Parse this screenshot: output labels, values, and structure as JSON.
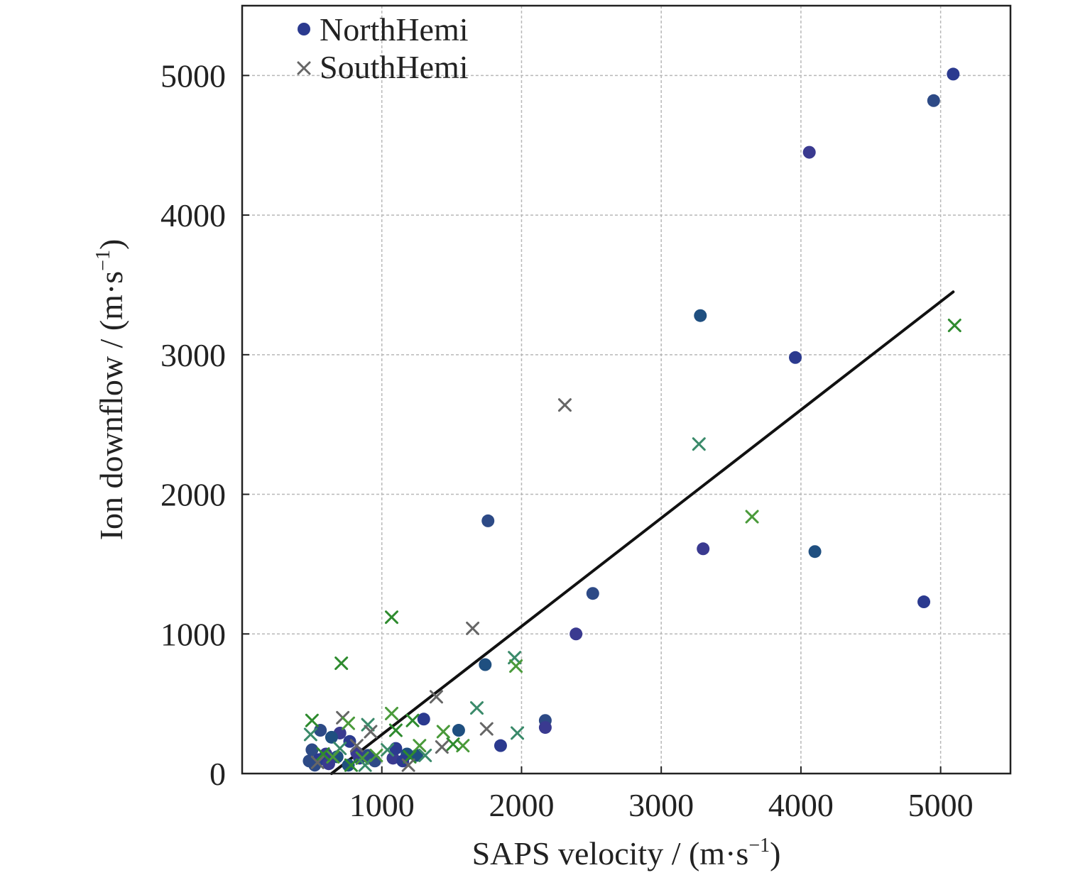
{
  "chart_data": {
    "type": "scatter",
    "xlabel": {
      "prefix": "SAPS velocity / (m·s",
      "sup": "−1",
      "suffix": ")"
    },
    "ylabel": {
      "prefix": "Ion downflow / (m·s",
      "sup": "−1",
      "suffix": ")"
    },
    "xlim": [
      0,
      5500
    ],
    "ylim": [
      0,
      5500
    ],
    "xticks": [
      1000,
      2000,
      3000,
      4000,
      5000
    ],
    "yticks": [
      0,
      1000,
      2000,
      3000,
      4000,
      5000
    ],
    "grid": true,
    "legend": {
      "position": "top-left",
      "entries": [
        {
          "label": "NorthHemi",
          "marker": "circle",
          "color": "#2b3a8f"
        },
        {
          "label": "SouthHemi",
          "marker": "x",
          "color": "#666666"
        }
      ]
    },
    "series": [
      {
        "name": "NorthHemi",
        "marker": "circle",
        "colors": [
          "#2b3a8f",
          "#2d4a86",
          "#3a3a90",
          "#1f4f80"
        ],
        "points": [
          [
            5090,
            5010
          ],
          [
            4950,
            4820
          ],
          [
            4060,
            4450
          ],
          [
            3280,
            3280
          ],
          [
            3960,
            2980
          ],
          [
            1760,
            1810
          ],
          [
            3300,
            1610
          ],
          [
            4100,
            1590
          ],
          [
            4880,
            1230
          ],
          [
            2510,
            1290
          ],
          [
            2390,
            1000
          ],
          [
            1740,
            780
          ],
          [
            1300,
            390
          ],
          [
            2170,
            380
          ],
          [
            2170,
            330
          ],
          [
            1550,
            310
          ],
          [
            1850,
            200
          ],
          [
            560,
            310
          ],
          [
            700,
            290
          ],
          [
            640,
            260
          ],
          [
            770,
            230
          ],
          [
            500,
            170
          ],
          [
            600,
            140
          ],
          [
            680,
            120
          ],
          [
            550,
            100
          ],
          [
            480,
            90
          ],
          [
            620,
            70
          ],
          [
            760,
            60
          ],
          [
            840,
            110
          ],
          [
            950,
            90
          ],
          [
            1080,
            110
          ],
          [
            1180,
            140
          ],
          [
            1100,
            180
          ],
          [
            900,
            130
          ],
          [
            820,
            150
          ],
          [
            1250,
            130
          ],
          [
            1150,
            90
          ],
          [
            520,
            60
          ]
        ]
      },
      {
        "name": "SouthHemi",
        "marker": "x",
        "colors": [
          "#2e8b2e",
          "#666666",
          "#3a8a6a",
          "#4a9a3a"
        ],
        "points": [
          [
            5100,
            3210
          ],
          [
            2310,
            2640
          ],
          [
            3270,
            2360
          ],
          [
            3650,
            1840
          ],
          [
            1070,
            1120
          ],
          [
            1650,
            1040
          ],
          [
            1950,
            830
          ],
          [
            1960,
            770
          ],
          [
            710,
            790
          ],
          [
            1390,
            550
          ],
          [
            1680,
            470
          ],
          [
            1070,
            430
          ],
          [
            500,
            380
          ],
          [
            720,
            400
          ],
          [
            900,
            350
          ],
          [
            760,
            360
          ],
          [
            1220,
            380
          ],
          [
            1750,
            320
          ],
          [
            1970,
            290
          ],
          [
            1440,
            300
          ],
          [
            1100,
            310
          ],
          [
            920,
            300
          ],
          [
            490,
            280
          ],
          [
            1580,
            200
          ],
          [
            1510,
            210
          ],
          [
            1430,
            190
          ],
          [
            1310,
            130
          ],
          [
            1270,
            200
          ],
          [
            1200,
            120
          ],
          [
            1190,
            60
          ],
          [
            1040,
            170
          ],
          [
            860,
            110
          ],
          [
            780,
            60
          ],
          [
            820,
            200
          ],
          [
            700,
            180
          ],
          [
            650,
            120
          ],
          [
            580,
            140
          ],
          [
            540,
            80
          ],
          [
            880,
            60
          ],
          [
            960,
            130
          ]
        ]
      }
    ],
    "fit_line": {
      "color": "#111111",
      "from": [
        640,
        0
      ],
      "to": [
        5090,
        3450
      ]
    }
  }
}
